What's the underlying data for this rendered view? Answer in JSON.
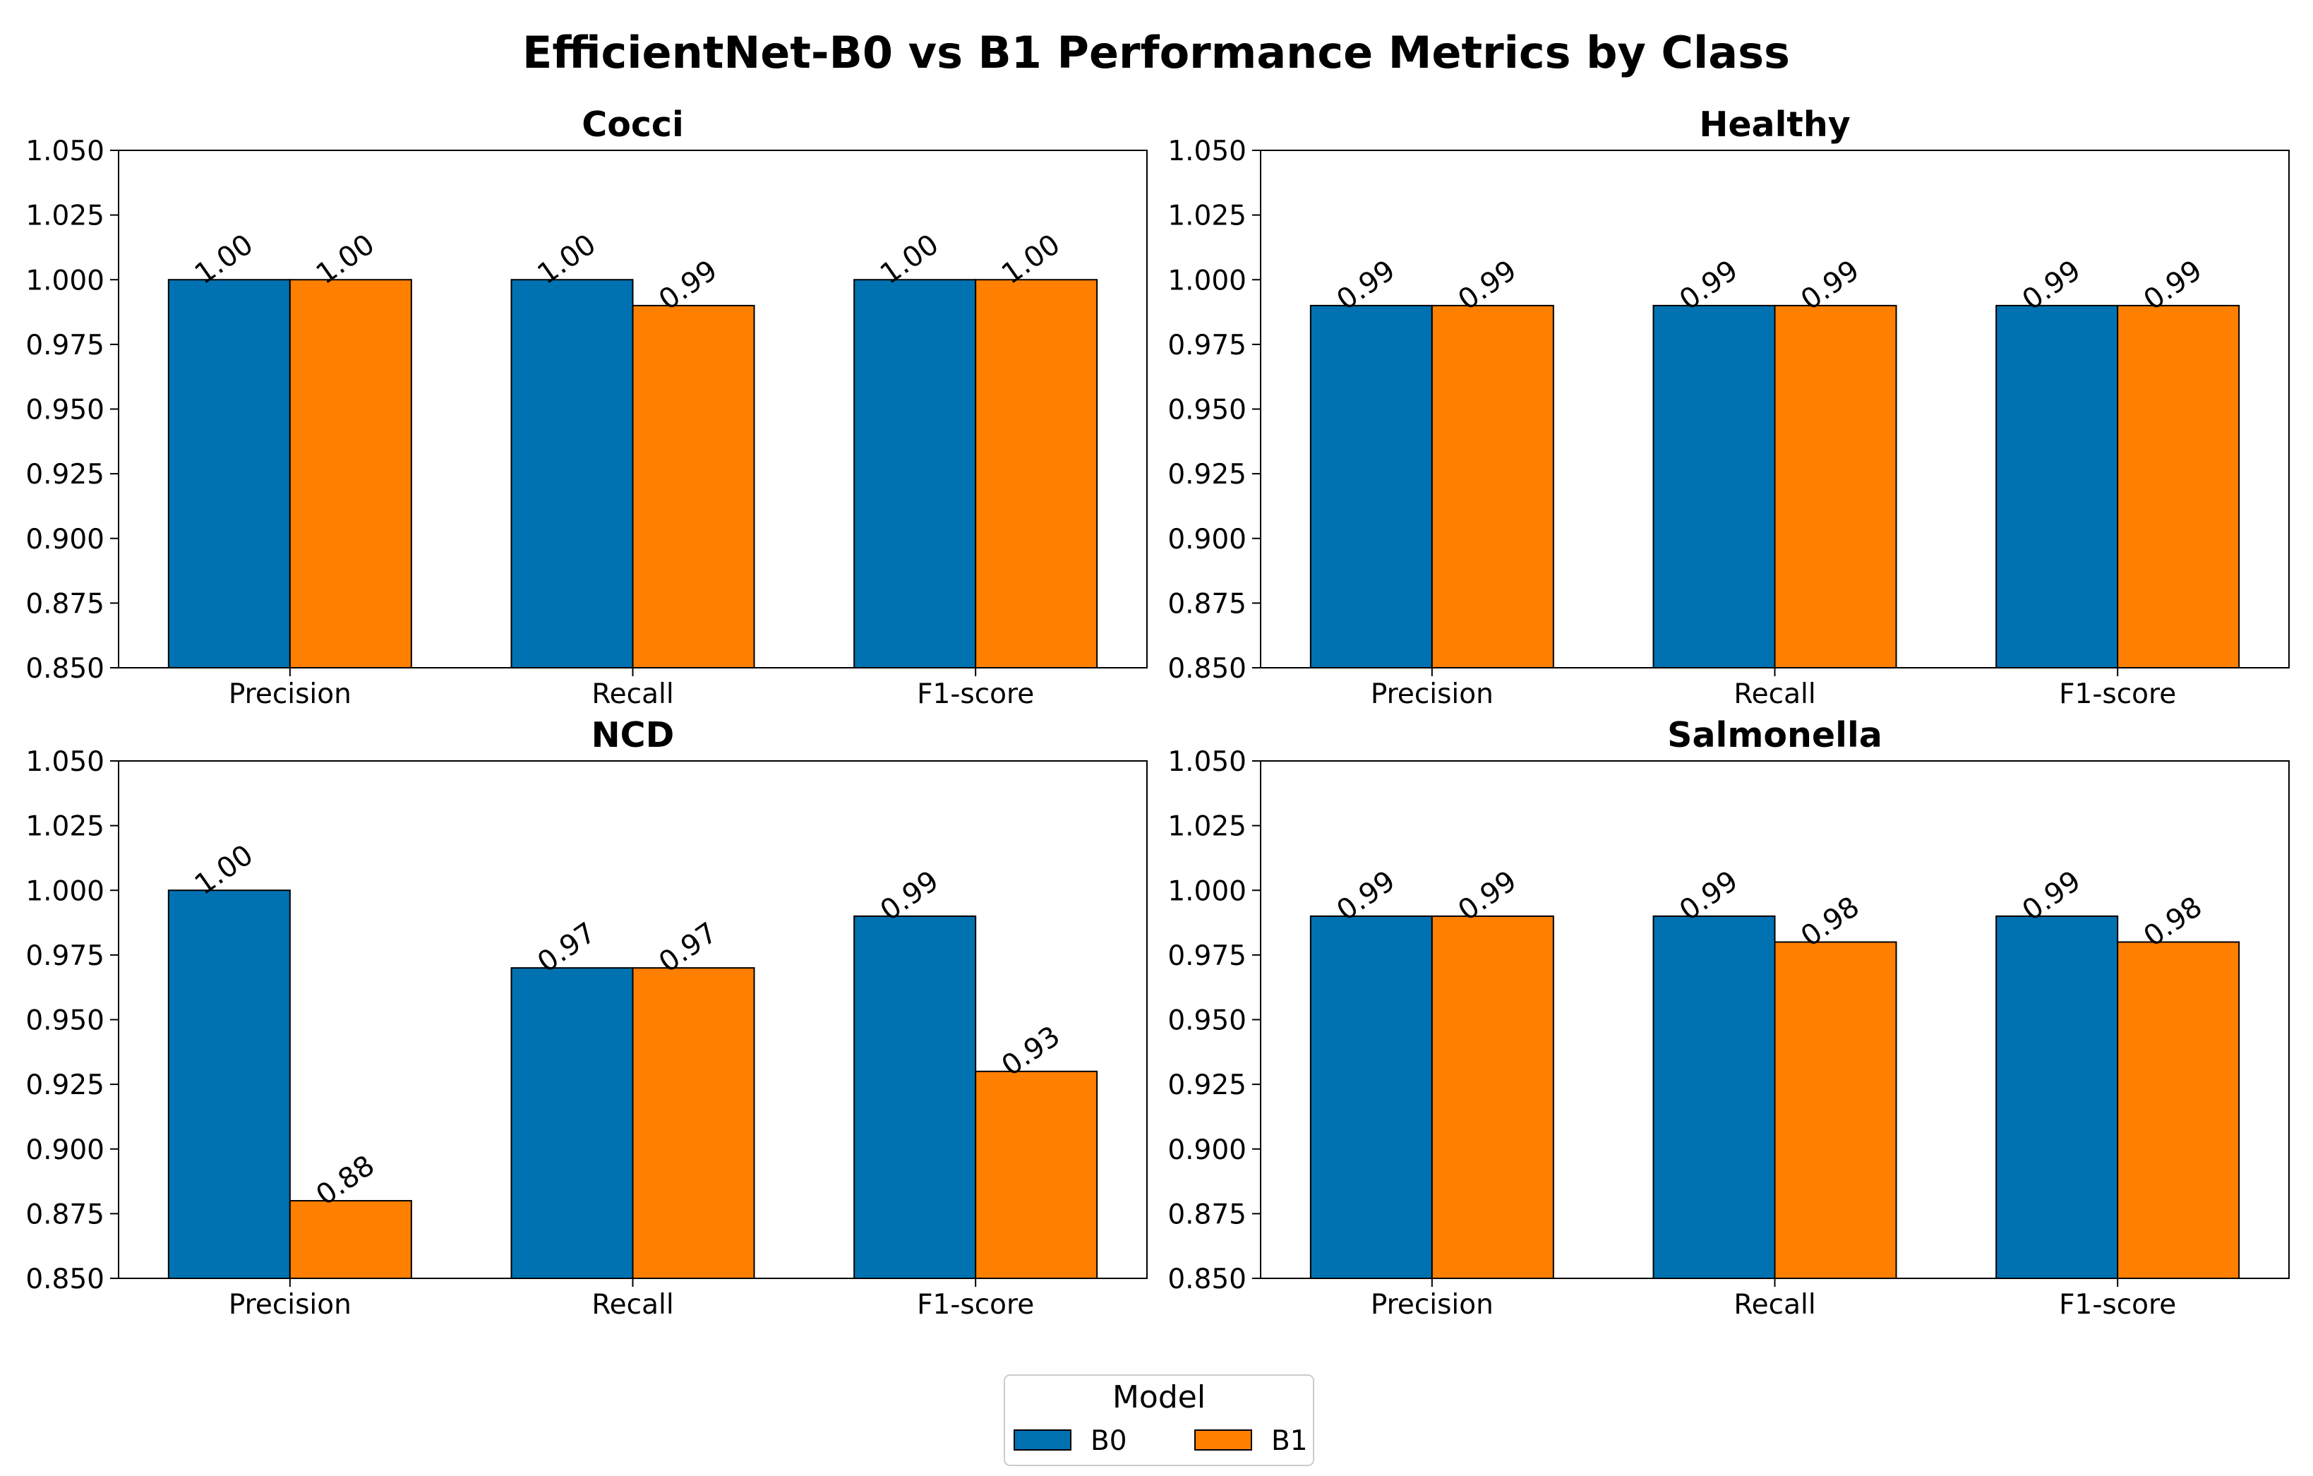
{
  "chart_data": {
    "type": "bar",
    "title": "EfficientNet-B0 vs B1 Performance Metrics by Class",
    "categories": [
      "Precision",
      "Recall",
      "F1-score"
    ],
    "ylim": [
      0.85,
      1.05
    ],
    "yticks": [
      "0.850",
      "0.875",
      "0.900",
      "0.925",
      "0.950",
      "0.975",
      "1.000",
      "1.025",
      "1.050"
    ],
    "grid": false,
    "legend": {
      "title": "Model",
      "placement": "bottom-center",
      "entries": [
        "B0",
        "B1"
      ]
    },
    "colors": {
      "B0": "#0072B2",
      "B1": "#FF7F00"
    },
    "panels": [
      {
        "title": "Cocci",
        "series": [
          {
            "name": "B0",
            "values": [
              1.0,
              1.0,
              1.0
            ],
            "labels": [
              "1.00",
              "1.00",
              "1.00"
            ]
          },
          {
            "name": "B1",
            "values": [
              1.0,
              0.99,
              1.0
            ],
            "labels": [
              "1.00",
              "0.99",
              "1.00"
            ]
          }
        ]
      },
      {
        "title": "Healthy",
        "series": [
          {
            "name": "B0",
            "values": [
              0.99,
              0.99,
              0.99
            ],
            "labels": [
              "0.99",
              "0.99",
              "0.99"
            ]
          },
          {
            "name": "B1",
            "values": [
              0.99,
              0.99,
              0.99
            ],
            "labels": [
              "0.99",
              "0.99",
              "0.99"
            ]
          }
        ]
      },
      {
        "title": "NCD",
        "series": [
          {
            "name": "B0",
            "values": [
              1.0,
              0.97,
              0.99
            ],
            "labels": [
              "1.00",
              "0.97",
              "0.99"
            ]
          },
          {
            "name": "B1",
            "values": [
              0.88,
              0.97,
              0.93
            ],
            "labels": [
              "0.88",
              "0.97",
              "0.93"
            ]
          }
        ]
      },
      {
        "title": "Salmonella",
        "series": [
          {
            "name": "B0",
            "values": [
              0.99,
              0.99,
              0.99
            ],
            "labels": [
              "0.99",
              "0.99",
              "0.99"
            ]
          },
          {
            "name": "B1",
            "values": [
              0.99,
              0.98,
              0.98
            ],
            "labels": [
              "0.99",
              "0.98",
              "0.98"
            ]
          }
        ]
      }
    ]
  }
}
